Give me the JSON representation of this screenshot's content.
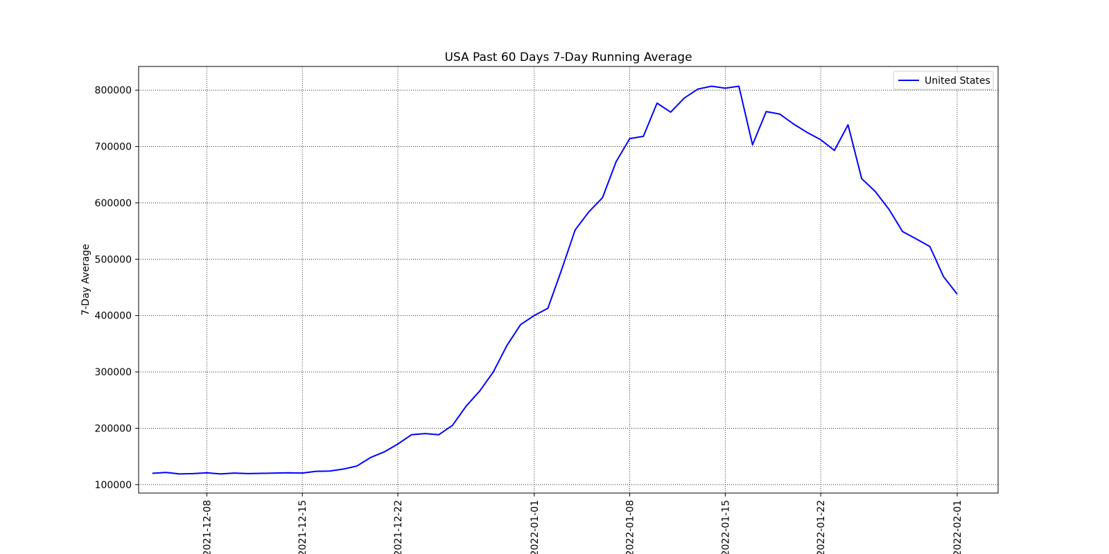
{
  "chart_data": {
    "type": "line",
    "title": "USA Past 60 Days 7-Day Running Average",
    "xlabel": "",
    "ylabel": "7-Day Average",
    "grid": true,
    "grid_style": "dotted",
    "legend_position": "top-right",
    "x_axis_type": "date",
    "xlim": [
      "2021-12-03",
      "2022-02-04"
    ],
    "ylim": [
      85000,
      842000
    ],
    "x_ticks": [
      "2021-12-08",
      "2021-12-15",
      "2021-12-22",
      "2022-01-01",
      "2022-01-08",
      "2022-01-15",
      "2022-01-22",
      "2022-02-01"
    ],
    "y_ticks": [
      100000,
      200000,
      300000,
      400000,
      500000,
      600000,
      700000,
      800000
    ],
    "series": [
      {
        "name": "United States",
        "color": "#0000ff",
        "x": [
          "2021-12-04",
          "2021-12-05",
          "2021-12-06",
          "2021-12-07",
          "2021-12-08",
          "2021-12-09",
          "2021-12-10",
          "2021-12-11",
          "2021-12-12",
          "2021-12-13",
          "2021-12-14",
          "2021-12-15",
          "2021-12-16",
          "2021-12-17",
          "2021-12-18",
          "2021-12-19",
          "2021-12-20",
          "2021-12-21",
          "2021-12-22",
          "2021-12-23",
          "2021-12-24",
          "2021-12-25",
          "2021-12-26",
          "2021-12-27",
          "2021-12-28",
          "2021-12-29",
          "2021-12-30",
          "2021-12-31",
          "2022-01-01",
          "2022-01-02",
          "2022-01-03",
          "2022-01-04",
          "2022-01-05",
          "2022-01-06",
          "2022-01-07",
          "2022-01-08",
          "2022-01-09",
          "2022-01-10",
          "2022-01-11",
          "2022-01-12",
          "2022-01-13",
          "2022-01-14",
          "2022-01-15",
          "2022-01-16",
          "2022-01-17",
          "2022-01-18",
          "2022-01-19",
          "2022-01-20",
          "2022-01-21",
          "2022-01-22",
          "2022-01-23",
          "2022-01-24",
          "2022-01-25",
          "2022-01-26",
          "2022-01-27",
          "2022-01-28",
          "2022-01-29",
          "2022-01-30",
          "2022-01-31",
          "2022-02-01"
        ],
        "values": [
          120000,
          121500,
          119000,
          119500,
          121000,
          119000,
          120500,
          119500,
          120000,
          120500,
          121000,
          120500,
          123500,
          124000,
          127500,
          133000,
          148000,
          158000,
          172000,
          188500,
          190500,
          188500,
          205000,
          239000,
          266000,
          300000,
          347000,
          384000,
          400000,
          413000,
          481000,
          552000,
          584000,
          609000,
          673000,
          714000,
          718000,
          777000,
          761000,
          786000,
          802000,
          807000,
          803500,
          807000,
          703000,
          762000,
          757500,
          740000,
          725000,
          712000,
          693000,
          738500,
          643000,
          620000,
          588500,
          549000,
          536000,
          522500,
          469000,
          438000
        ]
      }
    ]
  }
}
